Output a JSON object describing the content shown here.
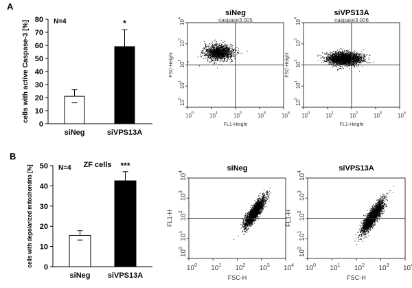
{
  "panels": {
    "a": "A",
    "b": "B"
  },
  "chart_data": [
    {
      "type": "bar",
      "panel": "A",
      "ylabel": "cells with active Caspase-3 [%]",
      "ylim": [
        0,
        80
      ],
      "yticks": [
        0,
        10,
        20,
        30,
        40,
        50,
        60,
        70,
        80
      ],
      "annotation": "N=4",
      "categories": [
        "siNeg",
        "siVPS13A"
      ],
      "values": [
        21,
        59
      ],
      "errors": [
        5,
        13
      ],
      "significance": [
        "",
        "*"
      ],
      "colors": [
        "#ffffff",
        "#000000"
      ]
    },
    {
      "type": "scatter",
      "panel": "A",
      "title": "siNeg",
      "subtitle": "caspase3.005",
      "xlabel": "FL1-Height",
      "ylabel": "FSC-Height",
      "scale": "log",
      "xlim": [
        1,
        10000
      ],
      "ylim": [
        1,
        10000
      ],
      "xticks": [
        "10",
        "10",
        "10",
        "10",
        "10"
      ],
      "xexp": [
        "0",
        "1",
        "2",
        "3",
        "4"
      ],
      "quadrant": [
        100,
        100
      ],
      "cluster": {
        "x": 20,
        "y": 400,
        "sx": 0.3,
        "sy": 0.18,
        "n": 1500
      }
    },
    {
      "type": "scatter",
      "panel": "A",
      "title": "siVPS13A",
      "subtitle": "caspase3.006",
      "xlabel": "FL1-Height",
      "ylabel": "FSC-Height",
      "scale": "log",
      "xlim": [
        1,
        10000
      ],
      "ylim": [
        1,
        10000
      ],
      "xticks": [
        "10",
        "10",
        "10",
        "10",
        "10"
      ],
      "xexp": [
        "0",
        "1",
        "2",
        "3",
        "4"
      ],
      "quadrant": [
        100,
        100
      ],
      "cluster": {
        "x": 50,
        "y": 200,
        "sx": 0.35,
        "sy": 0.15,
        "n": 2500
      }
    },
    {
      "type": "bar",
      "panel": "B",
      "title": "ZF cells",
      "ylabel": "cells with depolarized mitochondria [%]",
      "ylim": [
        0,
        50
      ],
      "yticks": [
        0,
        10,
        20,
        30,
        40,
        50
      ],
      "annotation": "N=4",
      "categories": [
        "siNeg",
        "siVPS13A"
      ],
      "values": [
        15.5,
        42.5
      ],
      "errors": [
        2.3,
        4.5
      ],
      "significance": [
        "",
        "***"
      ],
      "colors": [
        "#ffffff",
        "#000000"
      ]
    },
    {
      "type": "scatter",
      "panel": "B",
      "title": "siNeg",
      "xlabel": "FSC-H",
      "ylabel": "FL1-H",
      "scale": "log",
      "xlim": [
        1,
        10000
      ],
      "ylim": [
        1,
        10000
      ],
      "xticks": [
        "10",
        "10",
        "10",
        "10",
        "10"
      ],
      "xexp": [
        "0",
        "1",
        "2",
        "3",
        "4"
      ],
      "hline": 100,
      "cluster": {
        "x": 500,
        "y": 200,
        "sx": 0.2,
        "sy": 0.35,
        "n": 2500,
        "corr": 0.85
      }
    },
    {
      "type": "scatter",
      "panel": "B",
      "title": "siVPS13A",
      "xlabel": "FSC-H",
      "ylabel": "FL1-H",
      "scale": "log",
      "xlim": [
        1,
        10000
      ],
      "ylim": [
        1,
        10000
      ],
      "xticks": [
        "10",
        "10",
        "10",
        "10",
        "10"
      ],
      "xexp": [
        "0",
        "1",
        "2",
        "3",
        "4"
      ],
      "hline": 100,
      "cluster": {
        "x": 450,
        "y": 120,
        "sx": 0.22,
        "sy": 0.4,
        "n": 2500,
        "corr": 0.85
      }
    }
  ]
}
